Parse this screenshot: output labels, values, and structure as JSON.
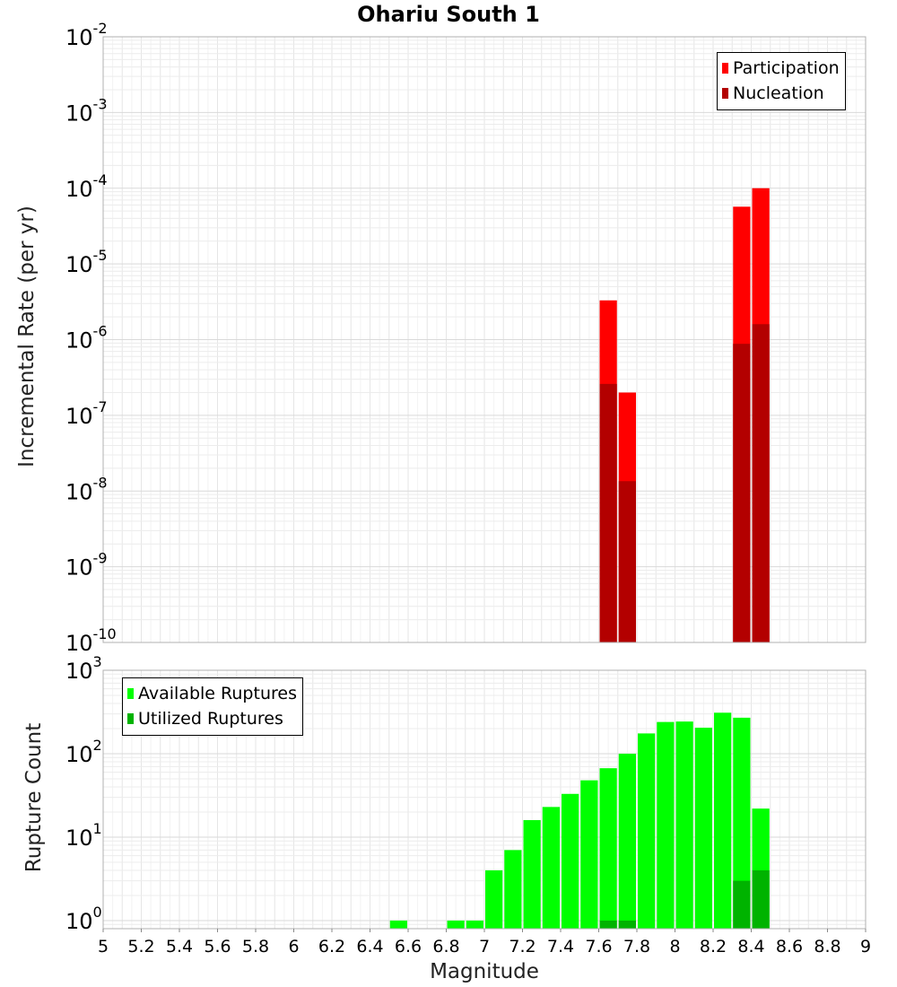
{
  "title": "Ohariu South 1",
  "colors": {
    "participation": "#ff0000",
    "nucleation": "#b30000",
    "available": "#00ff00",
    "utilized": "#00b300"
  },
  "chart_data": [
    {
      "type": "bar",
      "panel": "top",
      "ylabel": "Incremental Rate (per yr)",
      "yscale": "log",
      "ylim": [
        1e-10,
        0.01
      ],
      "xlim": [
        5,
        9
      ],
      "bin_width": 0.1,
      "y_tick_exponents": [
        -2,
        -3,
        -4,
        -5,
        -6,
        -7,
        -8,
        -9,
        -10
      ],
      "legend": [
        "Participation",
        "Nucleation"
      ],
      "legend_position": "top-right",
      "series": [
        {
          "name": "Participation",
          "x": [
            7.65,
            7.75,
            8.35,
            8.45
          ],
          "values": [
            3.3e-06,
            2e-07,
            5.7e-05,
            0.0001
          ]
        },
        {
          "name": "Nucleation",
          "x": [
            7.65,
            7.75,
            8.35,
            8.45
          ],
          "values": [
            2.6e-07,
            1.35e-08,
            8.8e-07,
            1.6e-06
          ]
        }
      ]
    },
    {
      "type": "bar",
      "panel": "bottom",
      "xlabel": "Magnitude",
      "ylabel": "Rupture Count",
      "yscale": "log",
      "ylim": [
        0.8,
        1000
      ],
      "xlim": [
        5,
        9
      ],
      "bin_width": 0.1,
      "y_tick_exponents": [
        3,
        2,
        1,
        0
      ],
      "x_ticks": [
        "5",
        "5.2",
        "5.4",
        "5.6",
        "5.8",
        "6",
        "6.2",
        "6.4",
        "6.6",
        "6.8",
        "7",
        "7.2",
        "7.4",
        "7.6",
        "7.8",
        "8",
        "8.2",
        "8.4",
        "8.6",
        "8.8",
        "9"
      ],
      "legend": [
        "Available Ruptures",
        "Utilized Ruptures"
      ],
      "legend_position": "top-left",
      "series": [
        {
          "name": "Available Ruptures",
          "x": [
            6.55,
            6.85,
            6.95,
            7.05,
            7.15,
            7.25,
            7.35,
            7.45,
            7.55,
            7.65,
            7.75,
            7.85,
            7.95,
            8.05,
            8.15,
            8.25,
            8.35,
            8.45
          ],
          "values": [
            1,
            1,
            1,
            4,
            7,
            16,
            23,
            33,
            48,
            67,
            100,
            175,
            240,
            243,
            205,
            310,
            270,
            22
          ]
        },
        {
          "name": "Utilized Ruptures",
          "x": [
            7.65,
            7.75,
            8.35,
            8.45
          ],
          "values": [
            1,
            1,
            3,
            4
          ]
        }
      ]
    }
  ]
}
